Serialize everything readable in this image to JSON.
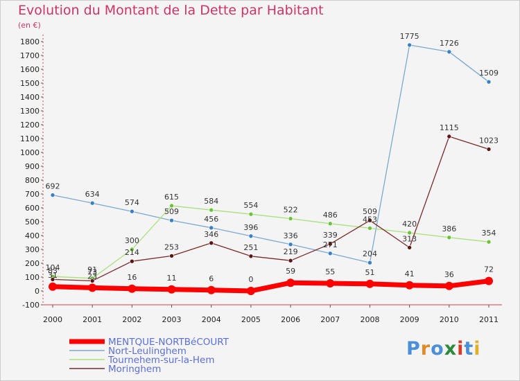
{
  "title": "Evolution du Montant de la Dette par Habitant",
  "unit_label": "(en €)",
  "logo": {
    "text": "Proxiti",
    "letters": [
      "P",
      "r",
      "o",
      "x",
      "i",
      "t",
      "i"
    ],
    "colors": [
      "#4a8fd8",
      "#e08a2a",
      "#4a8fd8",
      "#2a8a3a",
      "#d83a2a",
      "#4a8fd8",
      "#e0b02a"
    ]
  },
  "chart_data": {
    "type": "line",
    "categories": [
      "2000",
      "2001",
      "2002",
      "2003",
      "2004",
      "2005",
      "2006",
      "2007",
      "2008",
      "2009",
      "2010",
      "2011"
    ],
    "ylim": [
      -100,
      1800
    ],
    "yticks": [
      -100,
      0,
      100,
      200,
      300,
      400,
      500,
      600,
      700,
      800,
      900,
      1000,
      1100,
      1200,
      1300,
      1400,
      1500,
      1600,
      1700,
      1800
    ],
    "grid": false,
    "legend_position": "bottom-left",
    "series": [
      {
        "name": "MENTQUE-NORTBéCOURT",
        "color": "#ff0000",
        "dot_color": "#ff0000",
        "line_width": 7,
        "values": [
          31,
          23,
          16,
          11,
          6,
          0,
          59,
          55,
          51,
          41,
          36,
          72
        ],
        "labels": [
          "31",
          "23",
          "16",
          "11",
          "6",
          "0",
          "59",
          "55",
          "51",
          "41",
          "36",
          "72"
        ]
      },
      {
        "name": "Nort-Leulinghem",
        "color": "#7aa8d0",
        "dot_color": "#3b7fc4",
        "line_width": 1.3,
        "values": [
          692,
          634,
          574,
          509,
          456,
          396,
          336,
          271,
          204,
          1775,
          1726,
          1509
        ],
        "labels": [
          "692",
          "634",
          "574",
          "509",
          "456",
          "396",
          "336",
          "271",
          "204",
          "1775",
          "1726",
          "1509"
        ]
      },
      {
        "name": "Tournehem-sur-la-Hem",
        "color": "#a8e07a",
        "dot_color": "#6cc23a",
        "line_width": 1.3,
        "values": [
          104,
          91,
          300,
          615,
          584,
          554,
          522,
          486,
          453,
          420,
          386,
          354
        ],
        "labels": [
          "104",
          "91",
          "300",
          "615",
          "584",
          "554",
          "522",
          "486",
          "453",
          "420",
          "386",
          "354"
        ]
      },
      {
        "name": "Moringhem",
        "color": "#7a2a2a",
        "dot_color": "#5a1515",
        "line_width": 1.3,
        "values": [
          83,
          73,
          214,
          253,
          346,
          251,
          219,
          339,
          509,
          313,
          1115,
          1023
        ],
        "labels": [
          "83",
          "73",
          "214",
          "253",
          "346",
          "251",
          "219",
          "339",
          "509",
          "313",
          "1115",
          "1023"
        ]
      }
    ]
  }
}
